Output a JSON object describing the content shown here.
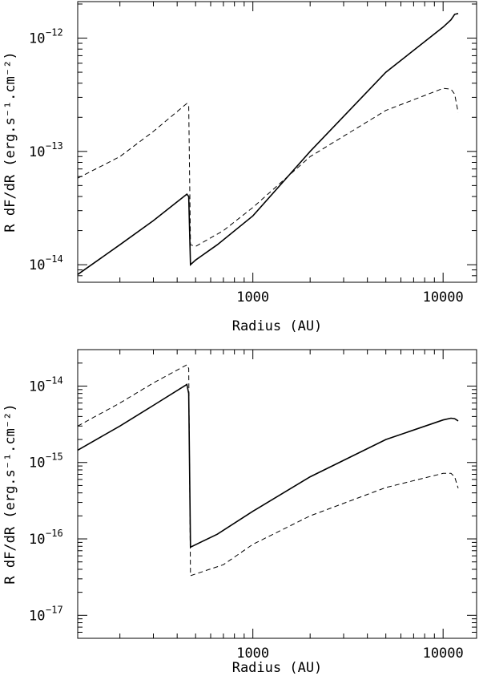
{
  "chart_data": [
    {
      "type": "line",
      "xlabel": "Radius (AU)",
      "ylabel": "R dF/dR (erg.s⁻¹.cm⁻²)",
      "xscale": "log",
      "yscale": "log",
      "xlim": [
        120,
        15000
      ],
      "ylim": [
        7e-15,
        2.1e-12
      ],
      "x_ticks": [
        {
          "value": 1000,
          "label": "1000"
        },
        {
          "value": 10000,
          "label": "10000"
        }
      ],
      "y_ticks": [
        {
          "value": 1e-14,
          "base": "10",
          "exp": "−14"
        },
        {
          "value": 1e-13,
          "base": "10",
          "exp": "−13"
        },
        {
          "value": 1e-12,
          "base": "10",
          "exp": "−12"
        }
      ],
      "series": [
        {
          "style": "solid",
          "x": [
            120,
            200,
            300,
            450,
            460,
            470,
            500,
            650,
            1000,
            2000,
            5000,
            10000,
            11000,
            11500,
            12000
          ],
          "y": [
            8.2e-15,
            1.5e-14,
            2.45e-14,
            4.2e-14,
            4e-14,
            1e-14,
            1.1e-14,
            1.5e-14,
            2.7e-14,
            1e-13,
            5e-13,
            1.25e-12,
            1.45e-12,
            1.62e-12,
            1.65e-12
          ]
        },
        {
          "style": "dashed",
          "x": [
            120,
            200,
            300,
            450,
            460,
            470,
            500,
            700,
            1000,
            2000,
            5000,
            10000,
            11000,
            11500,
            12000
          ],
          "y": [
            5.8e-14,
            9e-14,
            1.5e-13,
            2.65e-13,
            2.5e-13,
            1.5e-14,
            1.45e-14,
            2e-14,
            3.2e-14,
            9e-14,
            2.3e-13,
            3.6e-13,
            3.55e-13,
            3.2e-13,
            2.2e-13
          ]
        }
      ]
    },
    {
      "type": "line",
      "xlabel": "Radius (AU)",
      "ylabel": "R dF/dR (erg.s⁻¹.cm⁻²)",
      "xscale": "log",
      "yscale": "log",
      "xlim": [
        120,
        15000
      ],
      "ylim": [
        5e-18,
        3e-14
      ],
      "x_ticks": [
        {
          "value": 1000,
          "label": "1000"
        },
        {
          "value": 10000,
          "label": "10000"
        }
      ],
      "y_ticks": [
        {
          "value": 1e-17,
          "base": "10",
          "exp": "−17"
        },
        {
          "value": 1e-16,
          "base": "10",
          "exp": "−16"
        },
        {
          "value": 1e-15,
          "base": "10",
          "exp": "−15"
        },
        {
          "value": 1e-14,
          "base": "10",
          "exp": "−14"
        }
      ],
      "series": [
        {
          "style": "solid",
          "x": [
            120,
            200,
            300,
            450,
            460,
            470,
            650,
            1000,
            2000,
            5000,
            10000,
            11000,
            11500,
            12000
          ],
          "y": [
            1.45e-15,
            3e-15,
            5.6e-15,
            1.05e-14,
            8e-15,
            7.8e-17,
            1.15e-16,
            2.3e-16,
            6.5e-16,
            2e-15,
            3.6e-15,
            3.8e-15,
            3.75e-15,
            3.5e-15
          ]
        },
        {
          "style": "dashed",
          "x": [
            120,
            200,
            300,
            450,
            460,
            470,
            700,
            1000,
            2000,
            5000,
            10000,
            11000,
            11500,
            12000
          ],
          "y": [
            3e-15,
            6e-15,
            1.1e-14,
            1.9e-14,
            1.7e-14,
            3.3e-17,
            4.6e-17,
            8.5e-17,
            2e-16,
            4.7e-16,
            7.2e-16,
            7.2e-16,
            6.5e-16,
            4.6e-16
          ]
        }
      ]
    }
  ]
}
